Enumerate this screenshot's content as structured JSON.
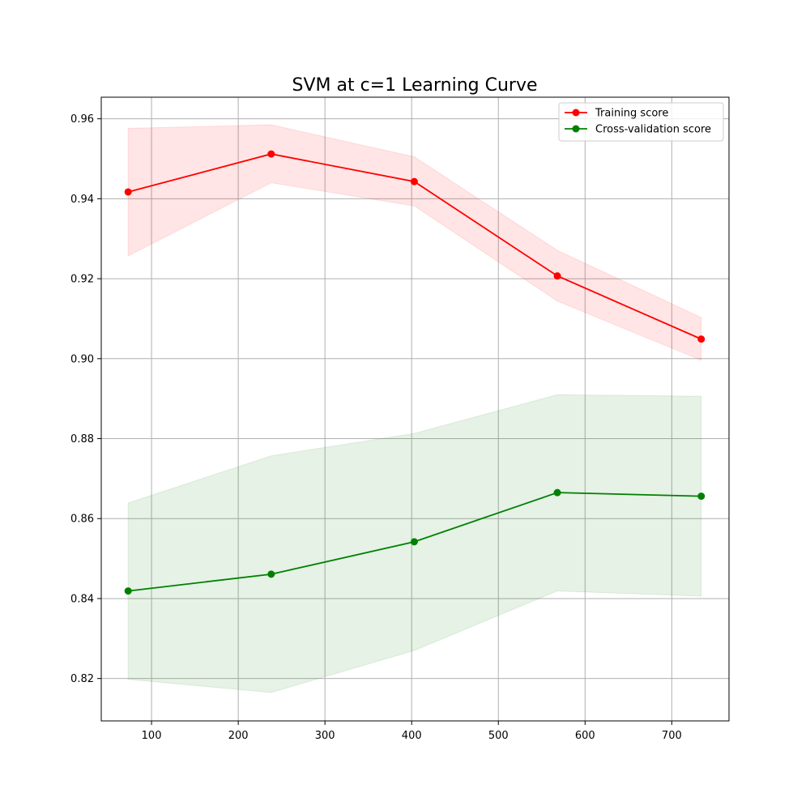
{
  "chart_data": {
    "type": "line",
    "title": "SVM at c=1 Learning Curve",
    "xlabel": "",
    "ylabel": "",
    "x": [
      73,
      238,
      403,
      568,
      734
    ],
    "xlim": [
      42,
      766
    ],
    "ylim": [
      0.8094,
      0.9654
    ],
    "xticks": [
      100,
      200,
      300,
      400,
      500,
      600,
      700
    ],
    "yticks": [
      0.82,
      0.84,
      0.86,
      0.88,
      0.9,
      0.92,
      0.94,
      0.96
    ],
    "grid": true,
    "legend": "top-right",
    "series": [
      {
        "name": "Training score",
        "color": "#ff0000",
        "band_color": "#ff0000",
        "values": [
          0.9417,
          0.9512,
          0.9443,
          0.9207,
          0.9049
        ],
        "band_upper": [
          0.9576,
          0.9585,
          0.9505,
          0.9271,
          0.9103
        ],
        "band_lower": [
          0.9257,
          0.944,
          0.9382,
          0.9144,
          0.8996
        ]
      },
      {
        "name": "Cross-validation score",
        "color": "#008000",
        "band_color": "#008000",
        "values": [
          0.8419,
          0.8461,
          0.8542,
          0.8665,
          0.8656
        ],
        "band_upper": [
          0.8639,
          0.8757,
          0.8813,
          0.891,
          0.8906
        ],
        "band_lower": [
          0.8198,
          0.8165,
          0.827,
          0.8419,
          0.8406
        ]
      }
    ]
  }
}
